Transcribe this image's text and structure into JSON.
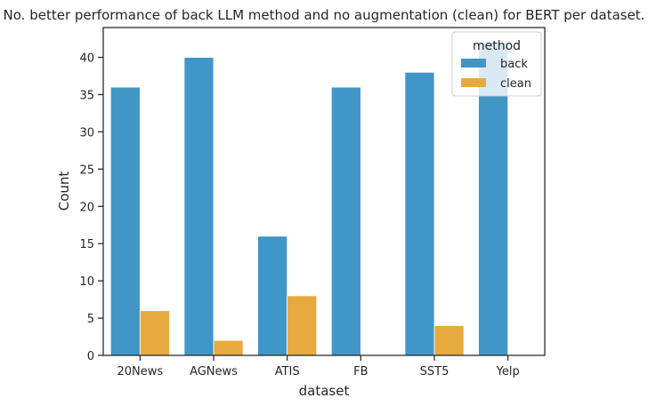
{
  "chart_data": {
    "type": "bar",
    "title": "No. better performance of back LLM method and no augmentation (clean) for BERT per dataset.",
    "xlabel": "dataset",
    "ylabel": "Count",
    "categories": [
      "20News",
      "AGNews",
      "ATIS",
      "FB",
      "SST5",
      "Yelp"
    ],
    "series": [
      {
        "name": "back",
        "values": [
          36,
          40,
          16,
          36,
          38,
          42
        ],
        "color": "#4196c8"
      },
      {
        "name": "clean",
        "values": [
          6,
          2,
          8,
          0,
          4,
          0
        ],
        "color": "#e7aa3f"
      }
    ],
    "ylim": [
      0,
      44
    ],
    "yticks": [
      0,
      5,
      10,
      15,
      20,
      25,
      30,
      35,
      40
    ],
    "grid": false,
    "legend": {
      "title": "method",
      "position": "top-right"
    }
  }
}
